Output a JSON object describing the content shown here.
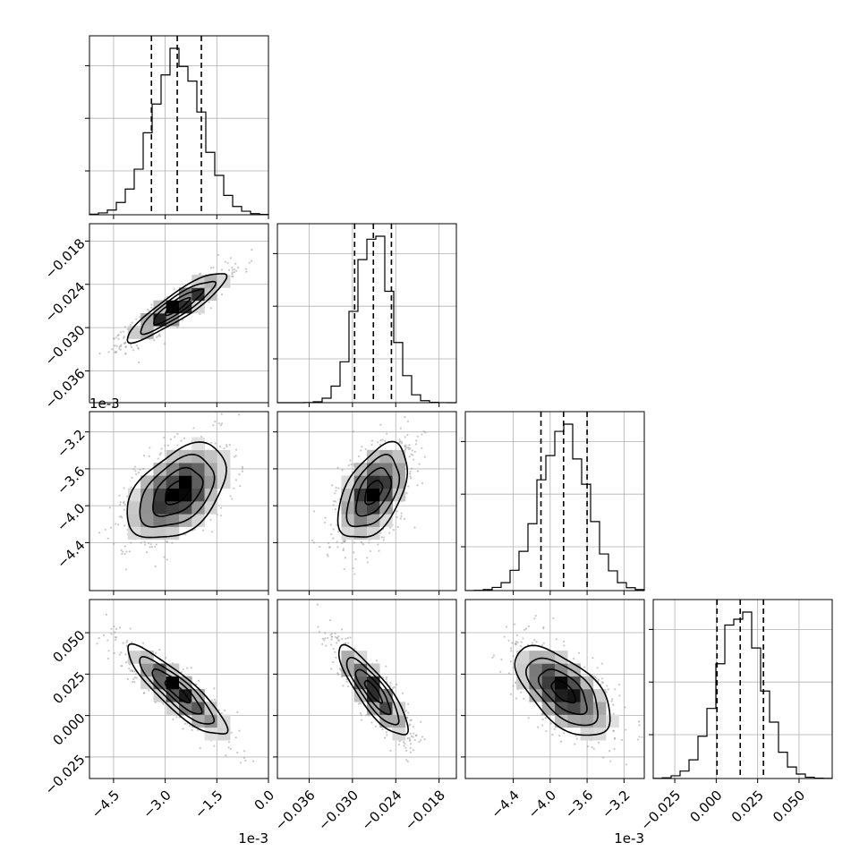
{
  "chart_data": {
    "type": "corner",
    "n_params": 4,
    "grid": true,
    "quantile_style": "dashed",
    "contour_color": "#000000",
    "scatter_color": "#9a9a9a",
    "params": [
      {
        "range": [
          -5.2,
          0.0
        ],
        "offset_label": "1e-3",
        "ticks": [
          -4.5,
          -3.0,
          -1.5,
          0.0
        ],
        "tick_labels": [
          "−4.5",
          "−3.0",
          "−1.5",
          "0.0"
        ],
        "mean": -2.65,
        "sd": 0.72,
        "quantiles": [
          -3.4,
          -2.65,
          -1.95
        ]
      },
      {
        "range": [
          -0.0404,
          -0.0156
        ],
        "offset_label": "",
        "ticks": [
          -0.036,
          -0.03,
          -0.024,
          -0.018
        ],
        "tick_labels": [
          "−0.036",
          "−0.030",
          "−0.024",
          "−0.018"
        ],
        "mean": -0.0271,
        "sd": 0.0024,
        "quantiles": [
          -0.0297,
          -0.0271,
          -0.0246
        ]
      },
      {
        "range": [
          -4.92,
          -2.98
        ],
        "offset_label": "1e-3",
        "ticks": [
          -4.4,
          -4.0,
          -3.6,
          -3.2
        ],
        "tick_labels": [
          "−4.4",
          "−4.0",
          "−3.6",
          "−3.2"
        ],
        "mean": -3.855,
        "sd": 0.258,
        "quantiles": [
          -4.1,
          -3.855,
          -3.6
        ]
      },
      {
        "range": [
          -0.038,
          0.07
        ],
        "offset_label": "",
        "ticks": [
          -0.025,
          0.0,
          0.025,
          0.05
        ],
        "tick_labels": [
          "−0.025",
          "0.000",
          "0.025",
          "0.050"
        ],
        "mean": 0.0145,
        "sd": 0.0135,
        "quantiles": [
          0.0005,
          0.0145,
          0.0285
        ]
      }
    ],
    "correlations": [
      {
        "i": 1,
        "j": 0,
        "rho": 0.9
      },
      {
        "i": 2,
        "j": 0,
        "rho": 0.45
      },
      {
        "i": 2,
        "j": 1,
        "rho": 0.5
      },
      {
        "i": 3,
        "j": 0,
        "rho": -0.88
      },
      {
        "i": 3,
        "j": 1,
        "rho": -0.85
      },
      {
        "i": 3,
        "j": 2,
        "rho": -0.6
      }
    ],
    "contour_levels_sigma": [
      0.5,
      1.0,
      1.5,
      2.0
    ]
  }
}
